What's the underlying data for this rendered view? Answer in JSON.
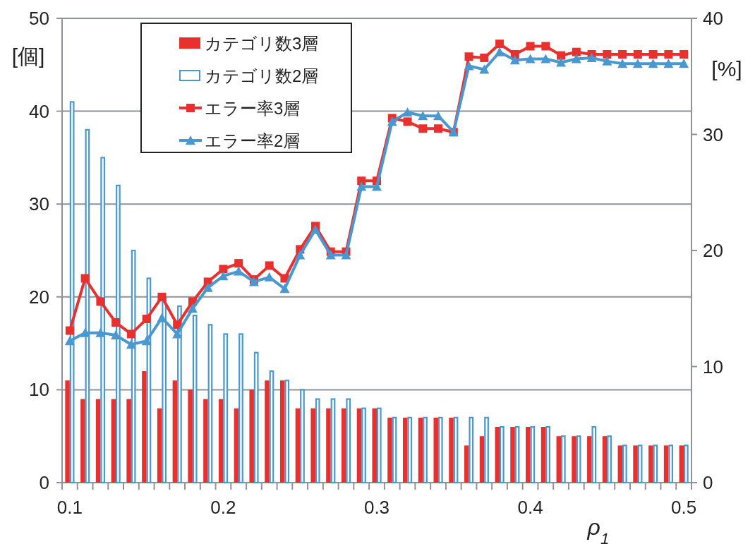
{
  "chart_data": {
    "type": "bar",
    "categories": [
      "0.1",
      null,
      null,
      null,
      null,
      null,
      null,
      null,
      null,
      null,
      "0.2",
      null,
      null,
      null,
      null,
      null,
      null,
      null,
      null,
      null,
      "0.3",
      null,
      null,
      null,
      null,
      null,
      null,
      null,
      null,
      null,
      "0.4",
      null,
      null,
      null,
      null,
      null,
      null,
      null,
      null,
      null,
      "0.5"
    ],
    "xlabel": "ρ$_{1}$",
    "ylabel": "[個]",
    "y2label": "[%]",
    "ylim": [
      0,
      50
    ],
    "yticks": [
      0,
      10,
      20,
      30,
      40,
      50
    ],
    "y2lim": [
      0,
      40
    ],
    "y2ticks": [
      0,
      10,
      20,
      30,
      40
    ],
    "grid": "y",
    "legend": "top left",
    "series": [
      {
        "name": "カテゴリ数3層",
        "color": "#e8312f",
        "values": [
          11,
          9,
          9,
          9,
          9,
          12,
          8,
          11,
          10,
          9,
          9,
          8,
          10,
          11,
          11,
          8,
          8,
          8,
          8,
          8,
          8,
          7,
          7,
          7,
          7,
          7,
          4,
          5,
          6,
          6,
          6,
          6,
          5,
          5,
          5,
          5,
          4,
          4,
          4,
          4,
          4
        ]
      },
      {
        "name": "カテゴリ数2層",
        "color": "#4a98d0",
        "values": [
          41,
          38,
          35,
          32,
          25,
          22,
          20,
          19,
          18,
          17,
          16,
          16,
          14,
          12,
          11,
          10,
          9,
          9,
          9,
          8,
          8,
          7,
          7,
          7,
          7,
          7,
          7,
          7,
          6,
          6,
          6,
          6,
          5,
          5,
          6,
          5,
          4,
          4,
          4,
          4,
          4
        ]
      },
      {
        "name": "エラー率3層",
        "type": "line",
        "axis": "y2",
        "marker": "square",
        "color": "#e8312f",
        "values": [
          13.1,
          17.6,
          15.6,
          13.8,
          12.8,
          14.1,
          16.0,
          13.6,
          15.6,
          17.3,
          18.4,
          18.9,
          17.5,
          18.7,
          17.6,
          20.1,
          22.1,
          19.9,
          19.9,
          26.0,
          26.0,
          31.4,
          31.1,
          30.5,
          30.5,
          30.2,
          36.7,
          36.6,
          37.8,
          36.9,
          37.6,
          37.6,
          36.8,
          37.1,
          36.9,
          36.9,
          36.9,
          36.9,
          36.9,
          36.9,
          36.9
        ]
      },
      {
        "name": "エラー率2層",
        "type": "line",
        "axis": "y2",
        "marker": "triangle",
        "color": "#4a98d0",
        "values": [
          12.2,
          12.9,
          12.9,
          12.7,
          11.9,
          12.2,
          14.2,
          12.8,
          15.0,
          16.8,
          17.8,
          18.2,
          17.3,
          17.7,
          16.7,
          19.6,
          21.8,
          19.6,
          19.6,
          25.5,
          25.5,
          31.1,
          31.9,
          31.6,
          31.6,
          30.2,
          35.9,
          35.6,
          37.1,
          36.4,
          36.5,
          36.5,
          36.2,
          36.5,
          36.6,
          36.3,
          36.1,
          36.1,
          36.1,
          36.1,
          36.1
        ]
      }
    ]
  }
}
